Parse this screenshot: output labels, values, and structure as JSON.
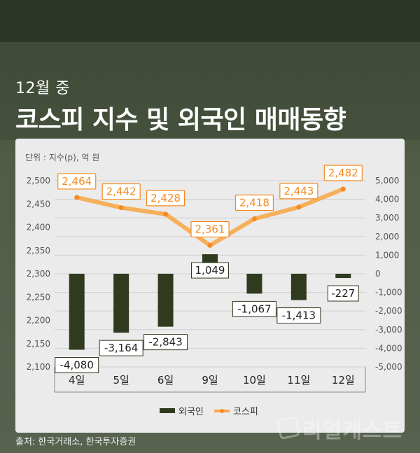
{
  "header": {
    "subtitle": "12월 중",
    "title": "코스피 지수 및 외국인 매매동향"
  },
  "unit_note": "단위 : 지수(p), 억 원",
  "source": "출처: 한국거래소, 한국투자증권",
  "brand": "리얼캐스트",
  "colors": {
    "bar": "#2f3a1e",
    "line": "#f7a84a",
    "marker": "#f58a1f",
    "label_border": "#f58a1f"
  },
  "chart_data": {
    "type": "bar+line",
    "categories": [
      "4일",
      "5일",
      "6일",
      "9일",
      "10일",
      "11일",
      "12일"
    ],
    "series": [
      {
        "name": "외국인",
        "type": "bar",
        "axis": "right",
        "values": [
          -4080,
          -3164,
          -2843,
          1049,
          -1067,
          -1413,
          -227
        ],
        "labels": [
          "-4,080",
          "-3,164",
          "-2,843",
          "1,049",
          "-1,067",
          "-1,413",
          "-227"
        ]
      },
      {
        "name": "코스피",
        "type": "line",
        "axis": "left",
        "values": [
          2464,
          2442,
          2428,
          2361,
          2418,
          2443,
          2482
        ],
        "labels": [
          "2,464",
          "2,442",
          "2,428",
          "2,361",
          "2,418",
          "2,443",
          "2,482"
        ]
      }
    ],
    "left_axis": {
      "ylim": [
        2100,
        2500
      ],
      "ticks": [
        "2,100",
        "2,150",
        "2,200",
        "2,250",
        "2,300",
        "2,350",
        "2,400",
        "2,450",
        "2,500"
      ]
    },
    "right_axis": {
      "ylim": [
        -5000,
        5000
      ],
      "ticks": [
        "-5,000",
        "-4,000",
        "-3,000",
        "-2,000",
        "-1,000",
        "0",
        "1,000",
        "2,000",
        "3,000",
        "4,000",
        "5,000"
      ]
    },
    "legend": {
      "position": "bottom-center",
      "items": [
        "외국인",
        "코스피"
      ]
    },
    "grid": true
  }
}
